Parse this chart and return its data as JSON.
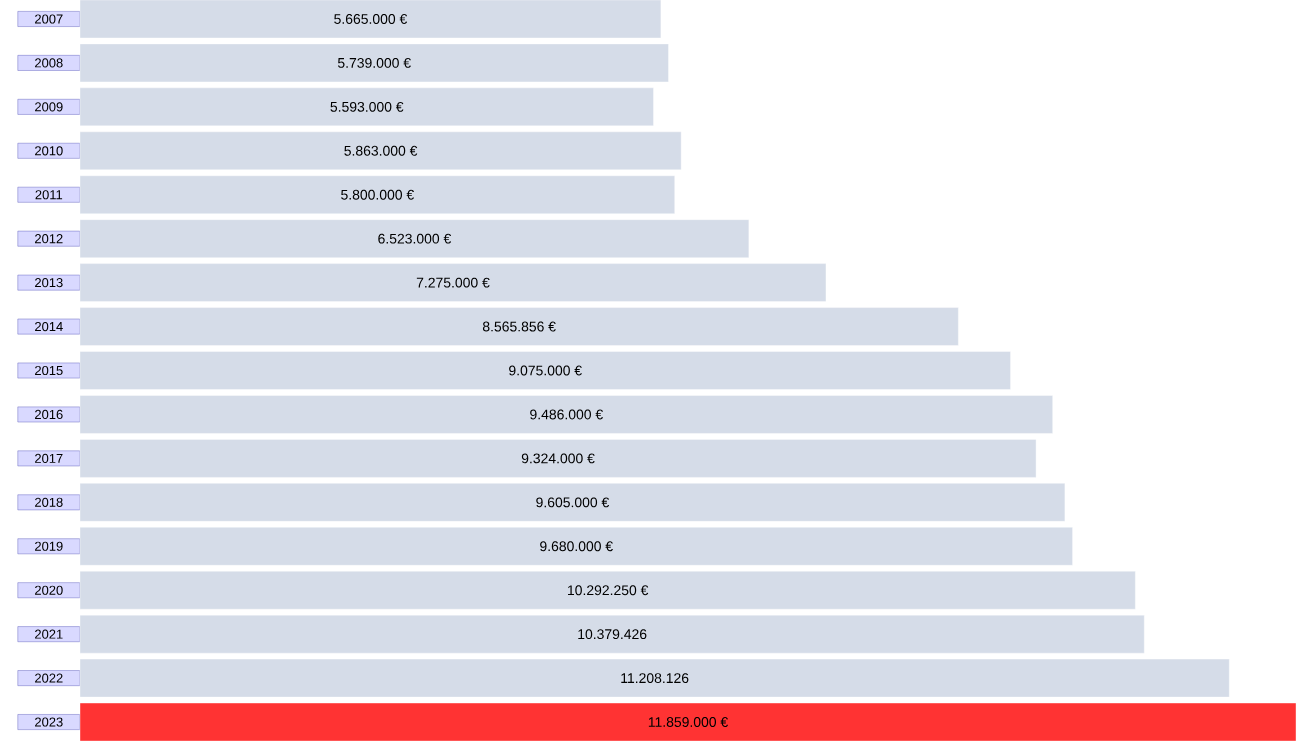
{
  "chart_data": {
    "type": "bar",
    "orientation": "horizontal",
    "categories": [
      "2007",
      "2008",
      "2009",
      "2010",
      "2011",
      "2012",
      "2013",
      "2014",
      "2015",
      "2016",
      "2017",
      "2018",
      "2019",
      "2020",
      "2021",
      "2022",
      "2023"
    ],
    "values": [
      5665000,
      5739000,
      5593000,
      5863000,
      5800000,
      6523000,
      7275000,
      8565856,
      9075000,
      9486000,
      9324000,
      9605000,
      9680000,
      10292250,
      10379426,
      11208126,
      11859000
    ],
    "value_labels": [
      "5.665.000 €",
      "5.739.000 €",
      "5.593.000 €",
      "5.863.000 €",
      "5.800.000 €",
      "6.523.000 €",
      "7.275.000 €",
      "8.565.856 €",
      "9.075.000 €",
      "9.486.000 €",
      "9.324.000 €",
      "9.605.000 €",
      "9.680.000 €",
      "10.292.250 €",
      "10.379.426",
      "11.208.126",
      "11.859.000 €"
    ],
    "colors": [
      "#d5dce8",
      "#d5dce8",
      "#d5dce8",
      "#d5dce8",
      "#d5dce8",
      "#d5dce8",
      "#d5dce8",
      "#d5dce8",
      "#d5dce8",
      "#d5dce8",
      "#d5dce8",
      "#d5dce8",
      "#d5dce8",
      "#d5dce8",
      "#d5dce8",
      "#d5dce8",
      "#ff3333"
    ]
  }
}
